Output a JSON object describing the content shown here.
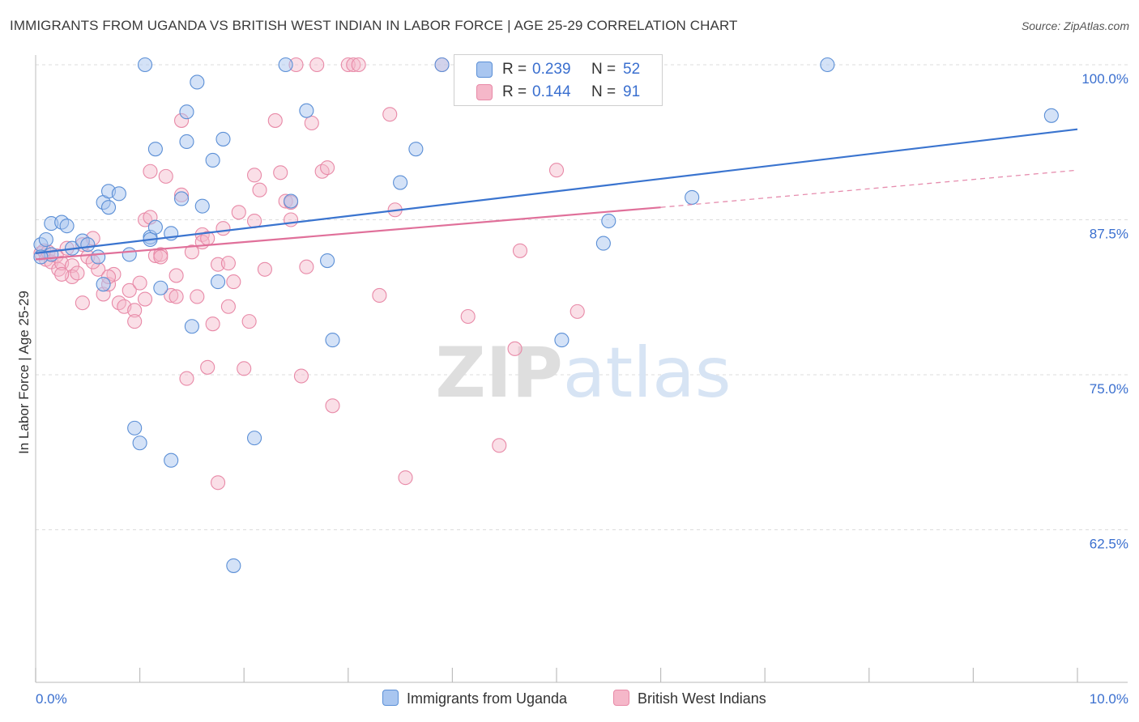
{
  "header": {
    "title": "IMMIGRANTS FROM UGANDA VS BRITISH WEST INDIAN IN LABOR FORCE | AGE 25-29 CORRELATION CHART",
    "source": "Source: ZipAtlas.com"
  },
  "watermark": "ZIPatlas",
  "legend": {
    "series1": {
      "r_label": "R =",
      "r_value": "0.239",
      "n_label": "N =",
      "n_value": "52"
    },
    "series2": {
      "r_label": "R =",
      "r_value": "0.144",
      "n_label": "N =",
      "n_value": "91"
    }
  },
  "colors": {
    "series1_fill": "#a9c6f0",
    "series1_stroke": "#5b8fd6",
    "series1_line": "#3a74cf",
    "series2_fill": "#f5b7c9",
    "series2_stroke": "#e889a7",
    "series2_line": "#e0709a",
    "axis_text": "#3a6fcf",
    "grid": "#dcdcdc"
  },
  "chart_data": {
    "type": "scatter",
    "title": "IMMIGRANTS FROM UGANDA VS BRITISH WEST INDIAN IN LABOR FORCE | AGE 25-29 CORRELATION CHART",
    "xlabel": "",
    "ylabel": "In Labor Force | Age 25-29",
    "xlim": [
      0.0,
      10.0
    ],
    "ylim": [
      51.0,
      101.0
    ],
    "x_tick_labels": [
      "0.0%",
      "10.0%"
    ],
    "y_ticks": [
      62.5,
      75.0,
      87.5,
      100.0
    ],
    "y_tick_labels": [
      "62.5%",
      "75.0%",
      "87.5%",
      "100.0%"
    ],
    "grid": true,
    "legend_position": "top-center",
    "series": [
      {
        "name": "Immigrants from Uganda",
        "trend": {
          "x": [
            0.0,
            10.0
          ],
          "y": [
            84.8,
            94.8
          ]
        },
        "points": [
          [
            0.05,
            85.5
          ],
          [
            0.1,
            85.9
          ],
          [
            0.15,
            84.7
          ],
          [
            0.05,
            84.5
          ],
          [
            0.15,
            87.2
          ],
          [
            0.25,
            87.3
          ],
          [
            0.3,
            87.0
          ],
          [
            0.35,
            85.2
          ],
          [
            0.45,
            85.8
          ],
          [
            0.5,
            85.5
          ],
          [
            0.6,
            84.5
          ],
          [
            0.65,
            82.3
          ],
          [
            0.65,
            88.9
          ],
          [
            0.7,
            88.5
          ],
          [
            0.7,
            89.8
          ],
          [
            0.8,
            89.6
          ],
          [
            0.9,
            84.7
          ],
          [
            0.95,
            70.7
          ],
          [
            1.0,
            69.5
          ],
          [
            1.15,
            93.2
          ],
          [
            1.1,
            86.1
          ],
          [
            1.05,
            100.0
          ],
          [
            1.1,
            85.9
          ],
          [
            1.15,
            86.9
          ],
          [
            1.2,
            82.0
          ],
          [
            1.3,
            86.4
          ],
          [
            1.3,
            68.1
          ],
          [
            1.4,
            89.2
          ],
          [
            1.45,
            96.2
          ],
          [
            1.45,
            93.8
          ],
          [
            1.5,
            78.9
          ],
          [
            1.55,
            98.6
          ],
          [
            1.6,
            88.6
          ],
          [
            1.7,
            92.3
          ],
          [
            1.75,
            82.5
          ],
          [
            1.8,
            94.0
          ],
          [
            1.9,
            59.6
          ],
          [
            2.1,
            69.9
          ],
          [
            2.4,
            100.0
          ],
          [
            2.45,
            89.0
          ],
          [
            2.6,
            96.3
          ],
          [
            2.8,
            84.2
          ],
          [
            2.85,
            77.8
          ],
          [
            3.5,
            90.5
          ],
          [
            3.65,
            93.2
          ],
          [
            3.9,
            100.0
          ],
          [
            5.05,
            77.8
          ],
          [
            5.5,
            87.4
          ],
          [
            5.45,
            85.6
          ],
          [
            6.3,
            89.3
          ],
          [
            7.6,
            100.0
          ],
          [
            9.75,
            95.9
          ]
        ]
      },
      {
        "name": "British West Indians",
        "trend": {
          "x": [
            0.0,
            6.0
          ],
          "y": [
            84.3,
            88.5
          ]
        },
        "trend_dashed": {
          "x": [
            6.0,
            10.0
          ],
          "y": [
            88.5,
            91.5
          ]
        },
        "points": [
          [
            0.05,
            84.8
          ],
          [
            0.08,
            85.0
          ],
          [
            0.1,
            84.3
          ],
          [
            0.12,
            84.9
          ],
          [
            0.15,
            84.1
          ],
          [
            0.2,
            84.6
          ],
          [
            0.22,
            83.5
          ],
          [
            0.25,
            84.0
          ],
          [
            0.3,
            85.2
          ],
          [
            0.35,
            83.8
          ],
          [
            0.35,
            82.9
          ],
          [
            0.4,
            83.2
          ],
          [
            0.45,
            85.5
          ],
          [
            0.5,
            84.5
          ],
          [
            0.55,
            86.0
          ],
          [
            0.6,
            83.5
          ],
          [
            0.65,
            81.5
          ],
          [
            0.7,
            82.3
          ],
          [
            0.75,
            83.1
          ],
          [
            0.8,
            80.8
          ],
          [
            0.85,
            80.5
          ],
          [
            0.9,
            81.8
          ],
          [
            0.95,
            80.2
          ],
          [
            0.95,
            79.3
          ],
          [
            1.0,
            82.4
          ],
          [
            1.05,
            87.5
          ],
          [
            1.1,
            87.7
          ],
          [
            1.1,
            91.4
          ],
          [
            1.15,
            84.6
          ],
          [
            1.2,
            84.7
          ],
          [
            1.25,
            91.0
          ],
          [
            1.3,
            81.4
          ],
          [
            1.35,
            83.0
          ],
          [
            1.35,
            81.3
          ],
          [
            1.4,
            89.5
          ],
          [
            1.4,
            95.5
          ],
          [
            1.45,
            74.7
          ],
          [
            1.5,
            84.9
          ],
          [
            1.55,
            81.3
          ],
          [
            1.6,
            86.3
          ],
          [
            1.6,
            85.7
          ],
          [
            1.65,
            75.6
          ],
          [
            1.7,
            79.1
          ],
          [
            1.75,
            66.3
          ],
          [
            1.75,
            83.9
          ],
          [
            1.8,
            86.8
          ],
          [
            1.85,
            80.5
          ],
          [
            1.9,
            82.5
          ],
          [
            1.95,
            88.1
          ],
          [
            2.0,
            75.5
          ],
          [
            2.05,
            79.3
          ],
          [
            2.1,
            91.1
          ],
          [
            2.1,
            87.4
          ],
          [
            2.15,
            89.9
          ],
          [
            2.2,
            83.5
          ],
          [
            2.3,
            95.5
          ],
          [
            2.35,
            91.3
          ],
          [
            2.4,
            89.0
          ],
          [
            2.45,
            88.9
          ],
          [
            2.45,
            87.5
          ],
          [
            2.5,
            100.0
          ],
          [
            2.55,
            74.9
          ],
          [
            2.6,
            83.7
          ],
          [
            2.65,
            95.3
          ],
          [
            2.7,
            100.0
          ],
          [
            2.75,
            91.4
          ],
          [
            2.8,
            91.7
          ],
          [
            2.85,
            72.5
          ],
          [
            3.0,
            100.0
          ],
          [
            3.05,
            100.0
          ],
          [
            3.1,
            100.0
          ],
          [
            3.3,
            81.4
          ],
          [
            3.4,
            96.0
          ],
          [
            3.45,
            88.3
          ],
          [
            3.55,
            66.7
          ],
          [
            3.9,
            100.0
          ],
          [
            4.15,
            79.7
          ],
          [
            4.45,
            69.3
          ],
          [
            4.6,
            77.1
          ],
          [
            4.65,
            85.0
          ],
          [
            4.9,
            100.0
          ],
          [
            5.0,
            91.5
          ],
          [
            5.2,
            80.1
          ],
          [
            1.2,
            84.5
          ],
          [
            0.55,
            84.1
          ],
          [
            0.7,
            82.9
          ],
          [
            0.25,
            83.1
          ],
          [
            0.45,
            80.8
          ],
          [
            1.85,
            84.0
          ],
          [
            1.65,
            86.0
          ],
          [
            1.05,
            81.1
          ]
        ]
      }
    ]
  },
  "bottom_legend": {
    "item1": "Immigrants from Uganda",
    "item2": "British West Indians"
  }
}
